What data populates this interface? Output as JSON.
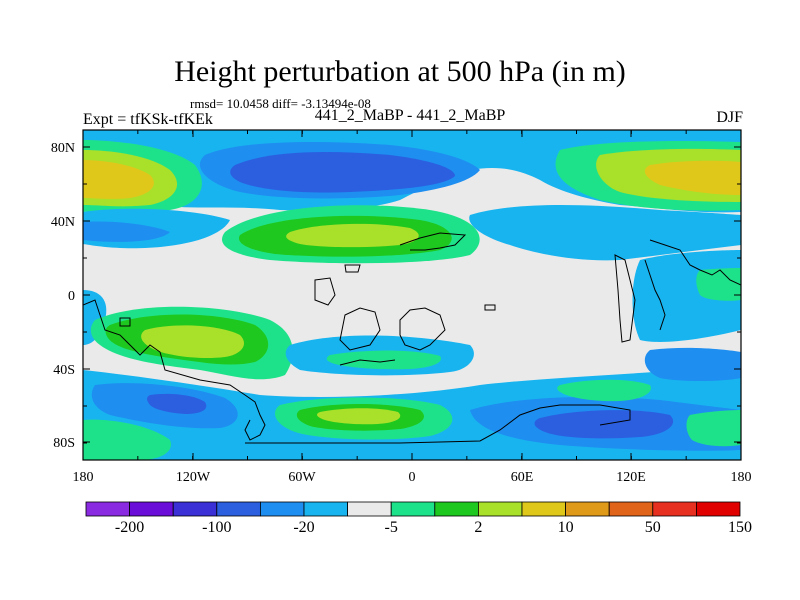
{
  "figure": {
    "title": "Height perturbation at 500 hPa (in m)",
    "stats_line": "rmsd= 10.0458 diff= -3.13494e-08",
    "left_label": "Expt = tfKSk-tfKEk",
    "center_label": "441_2_MaBP - 441_2_MaBP",
    "right_label": "DJF"
  },
  "axes": {
    "lat_ticks": [
      "80N",
      "40N",
      "0",
      "40S",
      "80S"
    ],
    "lon_ticks": [
      "180",
      "120W",
      "60W",
      "0",
      "60E",
      "120E",
      "180"
    ]
  },
  "colorbar": {
    "colors": [
      "#8a2be2",
      "#6a0dd8",
      "#3a30d6",
      "#2b5fe0",
      "#1e8ef0",
      "#18b4f0",
      "#eaeaea",
      "#1ee28a",
      "#1ec81e",
      "#a8e02a",
      "#e0c81a",
      "#e09a1a",
      "#e0641a",
      "#e83020",
      "#e00000"
    ],
    "labels": [
      "-200",
      "-100",
      "-20",
      "-5",
      "2",
      "10",
      "50",
      "150"
    ]
  },
  "field_colors": {
    "background": "#eaeaea",
    "cyan": "#18b4f0",
    "light_blue": "#1e8ef0",
    "blue": "#2b5fe0",
    "teal": "#1ee28a",
    "green": "#1ec81e",
    "yellow_green": "#a8e02a",
    "yellow": "#e0c81a"
  }
}
